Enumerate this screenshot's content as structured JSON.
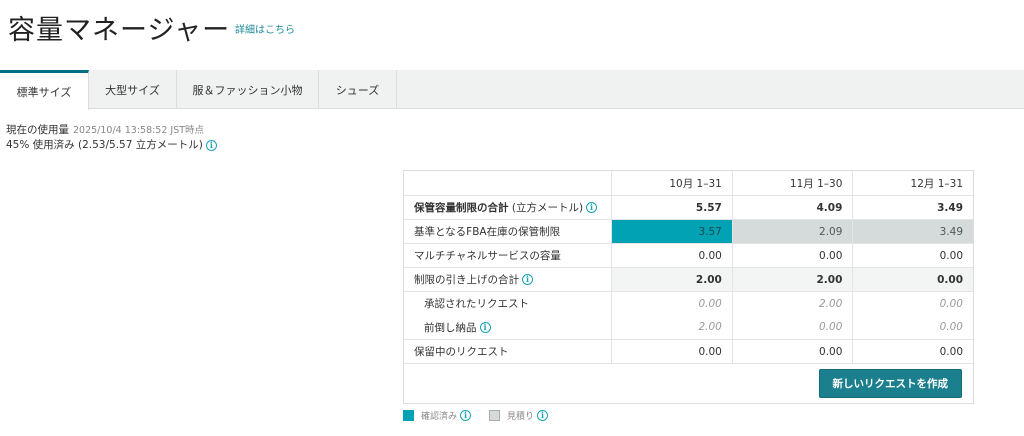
{
  "header": {
    "title": "容量マネージャー",
    "help_link": "詳細はこちら"
  },
  "tabs": [
    {
      "label": "標準サイズ",
      "active": true
    },
    {
      "label": "大型サイズ"
    },
    {
      "label": "服＆ファッション小物"
    },
    {
      "label": "シューズ"
    }
  ],
  "usage": {
    "label": "現在の使用量",
    "timestamp": "2025/10/4 13:58:52 JST時点",
    "summary": "45% 使用済み (2.53/5.57 立方メートル)",
    "percent_used": 45
  },
  "table": {
    "columns": [
      "10月 1–31",
      "11月 1–30",
      "12月 1–31"
    ],
    "total": {
      "label": "保管容量制限の合計",
      "unit": "(立方メートル)",
      "values": [
        "5.57",
        "4.09",
        "3.49"
      ]
    },
    "base": {
      "label": "基準となるFBA在庫の保管制限",
      "values": [
        "3.57",
        "2.09",
        "3.49"
      ],
      "status": [
        "confirmed",
        "estimated",
        "estimated"
      ]
    },
    "mcf": {
      "label": "マルチチャネルサービスの容量",
      "values": [
        "0.00",
        "0.00",
        "0.00"
      ]
    },
    "increase": {
      "label": "制限の引き上げの合計",
      "values": [
        "2.00",
        "2.00",
        "0.00"
      ]
    },
    "approved": {
      "label": "承認されたリクエスト",
      "values": [
        "0.00",
        "2.00",
        "0.00"
      ]
    },
    "early": {
      "label": "前倒し納品",
      "values": [
        "2.00",
        "0.00",
        "0.00"
      ]
    },
    "pending": {
      "label": "保留中のリクエスト",
      "values": [
        "0.00",
        "0.00",
        "0.00"
      ]
    },
    "button": "新しいリクエストを作成"
  },
  "legend": [
    {
      "label": "確認済み",
      "color": "#00a2b4"
    },
    {
      "label": "見積り",
      "color": "#d5dbdb"
    }
  ],
  "colors": {
    "accent": "#007185",
    "button": "#1b7f8d"
  }
}
